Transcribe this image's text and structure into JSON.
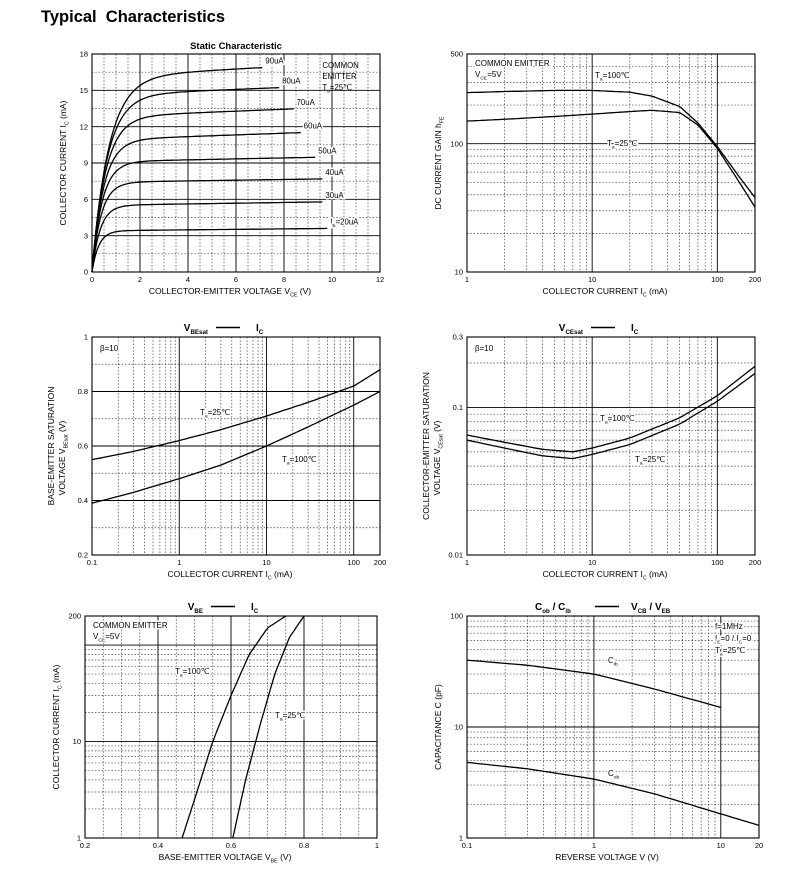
{
  "page": {
    "title": "Typical  Characteristics"
  },
  "chart_data": [
    {
      "id": "static",
      "type": "line",
      "title": "Static Characteristic",
      "xlabel": "COLLECTOR-EMITTER VOLTAGE",
      "xlabel_sym": "V",
      "xlabel_sub": "CE",
      "xlabel_unit": "(V)",
      "ylabel": "COLLECTOR CURRENT",
      "ylabel_sym": "I",
      "ylabel_sub": "C",
      "ylabel_unit": "(mA)",
      "xscale": "linear",
      "yscale": "linear",
      "xlim": [
        0,
        12
      ],
      "ylim": [
        0,
        18
      ],
      "xticks": [
        0,
        2,
        4,
        6,
        8,
        10,
        12
      ],
      "yticks": [
        0,
        3,
        6,
        9,
        12,
        15,
        18
      ],
      "annotation": [
        "COMMON",
        "EMITTER",
        "T",
        "a",
        "=25℃"
      ],
      "series": [
        {
          "name": "I",
          "name_sub": "B",
          "name_suffix": "=20uA",
          "ib": 20,
          "sat": 3.4,
          "slope": 0.02,
          "xmax": 9.8,
          "knee": 0.28
        },
        {
          "name": "30uA",
          "ib": 30,
          "sat": 5.5,
          "slope": 0.03,
          "xmax": 9.6,
          "knee": 0.34
        },
        {
          "name": "40uA",
          "ib": 40,
          "sat": 7.4,
          "slope": 0.03,
          "xmax": 9.6,
          "knee": 0.38
        },
        {
          "name": "50uA",
          "ib": 50,
          "sat": 9.1,
          "slope": 0.04,
          "xmax": 9.3,
          "knee": 0.42
        },
        {
          "name": "60uA",
          "ib": 60,
          "sat": 10.9,
          "slope": 0.07,
          "xmax": 8.7,
          "knee": 0.48
        },
        {
          "name": "70uA",
          "ib": 70,
          "sat": 12.8,
          "slope": 0.08,
          "xmax": 8.4,
          "knee": 0.55
        },
        {
          "name": "80uA",
          "ib": 80,
          "sat": 14.6,
          "slope": 0.08,
          "xmax": 7.8,
          "knee": 0.62
        },
        {
          "name": "90uA",
          "ib": 90,
          "sat": 16.1,
          "slope": 0.11,
          "xmax": 7.1,
          "knee": 0.7
        }
      ]
    },
    {
      "id": "hfe",
      "type": "line",
      "title": "",
      "xlabel": "COLLECTOR CURRENT",
      "xlabel_sym": "I",
      "xlabel_sub": "C",
      "xlabel_unit": "(mA)",
      "ylabel": "DC CURRENT GAIN",
      "ylabel_sym": "h",
      "ylabel_sub": "FE",
      "ylabel_unit": "",
      "xscale": "log",
      "yscale": "log",
      "xlim": [
        1,
        200
      ],
      "ylim": [
        10,
        500
      ],
      "xticks": [
        1,
        10,
        100,
        200
      ],
      "yticks": [
        10,
        100,
        500
      ],
      "annotation": [
        "COMMON EMITTER",
        "V",
        "CE",
        "=5V"
      ],
      "series": [
        {
          "name": "T",
          "name_sub": "a",
          "name_suffix": "=100℃",
          "x": [
            1,
            2,
            5,
            10,
            20,
            30,
            50,
            70,
            100,
            150,
            200
          ],
          "y": [
            250,
            255,
            260,
            260,
            252,
            235,
            195,
            145,
            95,
            55,
            38
          ]
        },
        {
          "name": "T",
          "name_sub": "a",
          "name_suffix": "=25℃",
          "x": [
            1,
            2,
            5,
            10,
            20,
            30,
            50,
            70,
            100,
            150,
            200
          ],
          "y": [
            150,
            155,
            163,
            170,
            178,
            182,
            175,
            140,
            92,
            50,
            32
          ]
        }
      ]
    },
    {
      "id": "vbesat",
      "type": "line",
      "title_parts": [
        "V",
        "BEsat",
        "I",
        "C"
      ],
      "xlabel": "COLLECTOR CURRENT",
      "xlabel_sym": "I",
      "xlabel_sub": "C",
      "xlabel_unit": "(mA)",
      "ylabel": [
        "BASE-EMITTER SATURATION",
        "VOLTAGE"
      ],
      "ylabel_sym": "V",
      "ylabel_sub": "BEsat",
      "ylabel_unit": "(V)",
      "xscale": "log",
      "yscale": "linear",
      "xlim": [
        0.1,
        200
      ],
      "ylim": [
        0.2,
        1.0
      ],
      "xticks": [
        0.1,
        1,
        10,
        100,
        200
      ],
      "yticks": [
        0.2,
        0.4,
        0.6,
        0.8,
        1.0
      ],
      "annotation": [
        "β=10"
      ],
      "series": [
        {
          "name": "T",
          "name_sub": "a",
          "name_suffix": "=25℃",
          "x": [
            0.1,
            0.3,
            1,
            3,
            10,
            30,
            100,
            200
          ],
          "y": [
            0.55,
            0.58,
            0.62,
            0.66,
            0.71,
            0.76,
            0.82,
            0.88
          ]
        },
        {
          "name": "T",
          "name_sub": "a",
          "name_suffix": "=100℃",
          "x": [
            0.1,
            0.3,
            1,
            3,
            10,
            30,
            100,
            200
          ],
          "y": [
            0.39,
            0.43,
            0.48,
            0.53,
            0.6,
            0.67,
            0.75,
            0.8
          ]
        }
      ]
    },
    {
      "id": "vcesat",
      "type": "line",
      "title_parts": [
        "V",
        "CEsat",
        "I",
        "C"
      ],
      "xlabel": "COLLECTOR CURRENT",
      "xlabel_sym": "I",
      "xlabel_sub": "C",
      "xlabel_unit": "(mA)",
      "ylabel": [
        "COLLECTOR-EMITTER SATURATION",
        "VOLTAGE"
      ],
      "ylabel_sym": "V",
      "ylabel_sub": "CEsat",
      "ylabel_unit": "(V)",
      "xscale": "log",
      "yscale": "log",
      "xlim": [
        1,
        200
      ],
      "ylim": [
        0.01,
        0.3
      ],
      "xticks": [
        1,
        10,
        100,
        200
      ],
      "yticks": [
        0.01,
        0.1,
        0.3
      ],
      "annotation": [
        "β=10"
      ],
      "series": [
        {
          "name": "T",
          "name_sub": "a",
          "name_suffix": "=100℃",
          "x": [
            1,
            2,
            4,
            7,
            10,
            20,
            50,
            100,
            200
          ],
          "y": [
            0.065,
            0.058,
            0.052,
            0.05,
            0.053,
            0.062,
            0.085,
            0.12,
            0.19
          ]
        },
        {
          "name": "T",
          "name_sub": "a",
          "name_suffix": "=25℃",
          "x": [
            1,
            2,
            4,
            7,
            10,
            20,
            50,
            100,
            200
          ],
          "y": [
            0.06,
            0.053,
            0.047,
            0.045,
            0.048,
            0.056,
            0.077,
            0.11,
            0.17
          ]
        }
      ]
    },
    {
      "id": "vbe",
      "type": "line",
      "title_parts": [
        "V",
        "BE",
        "I",
        "C"
      ],
      "xlabel": "BASE-EMITTER VOLTAGE",
      "xlabel_sym": "V",
      "xlabel_sub": "BE",
      "xlabel_unit": "(V)",
      "ylabel": "COLLECTOR CURRENT",
      "ylabel_sym": "I",
      "ylabel_sub": "C",
      "ylabel_unit": "(mA)",
      "xscale": "linear",
      "yscale": "log",
      "xlim": [
        0.2,
        1.0
      ],
      "ylim": [
        1,
        200
      ],
      "xticks": [
        0.2,
        0.4,
        0.6,
        0.8,
        1.0
      ],
      "yticks": [
        1,
        10,
        200
      ],
      "annotation": [
        "COMMON EMITTER",
        "V",
        "CE",
        "=5V"
      ],
      "series": [
        {
          "name": "T",
          "name_sub": "a",
          "name_suffix": "=100℃",
          "x": [
            0.466,
            0.5,
            0.55,
            0.6,
            0.65,
            0.7,
            0.75
          ],
          "y": [
            1,
            2.5,
            10,
            30,
            80,
            150,
            200
          ]
        },
        {
          "name": "T",
          "name_sub": "a",
          "name_suffix": "=25℃",
          "x": [
            0.605,
            0.64,
            0.68,
            0.72,
            0.76,
            0.8
          ],
          "y": [
            1,
            4,
            15,
            50,
            120,
            200
          ]
        }
      ]
    },
    {
      "id": "cap",
      "type": "line",
      "title_parts": [
        "C",
        "ob",
        "C",
        "ib",
        "V",
        "CB",
        "V",
        "EB"
      ],
      "xlabel": "REVERSE  VOLTAGE",
      "xlabel_sym": "V",
      "xlabel_sub": "",
      "xlabel_unit": "(V)",
      "ylabel": "CAPACITANCE",
      "ylabel_sym": "C",
      "ylabel_sub": "",
      "ylabel_unit": "(pF)",
      "xscale": "log",
      "yscale": "log",
      "xlim": [
        0.1,
        20
      ],
      "ylim": [
        1,
        100
      ],
      "xticks": [
        0.1,
        1,
        10,
        20
      ],
      "yticks": [
        1,
        10,
        100
      ],
      "annotation": [
        "f=1MHz",
        "I",
        "E",
        "=0 / I",
        "C",
        "=0",
        "T",
        "a",
        "=25℃"
      ],
      "series": [
        {
          "name": "C",
          "name_sub": "ib",
          "x": [
            0.1,
            0.3,
            1,
            3,
            10
          ],
          "y": [
            40,
            36,
            30,
            22,
            15
          ]
        },
        {
          "name": "C",
          "name_sub": "ob",
          "x": [
            0.1,
            0.3,
            1,
            3,
            10,
            20
          ],
          "y": [
            4.8,
            4.2,
            3.4,
            2.5,
            1.65,
            1.3
          ]
        }
      ]
    }
  ]
}
